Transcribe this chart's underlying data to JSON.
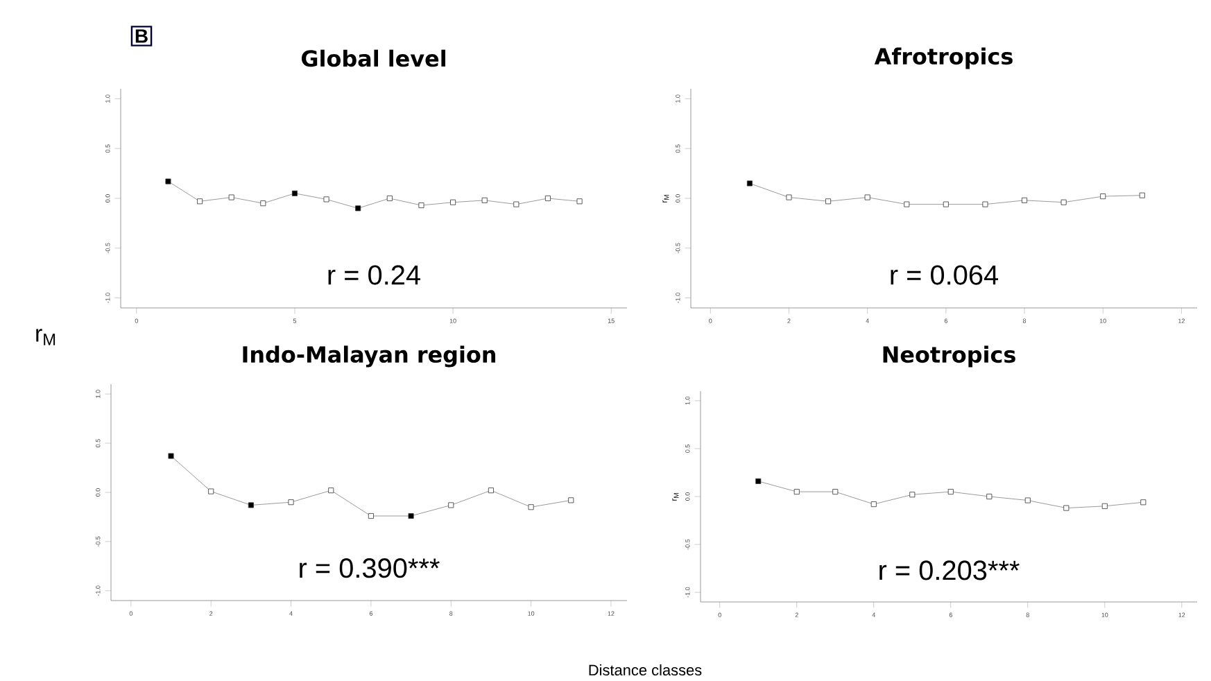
{
  "chart_data": [
    {
      "type": "line",
      "title": "Global level",
      "ylabel": "r$_{M}$",
      "annotations": [
        "B",
        "r = 0.24"
      ],
      "marker": "square",
      "grid": false,
      "xlim": [
        -0.5,
        15.5
      ],
      "ylim": [
        -1.1,
        1.1
      ],
      "xticks": [
        0,
        5,
        10,
        15
      ],
      "yticks": [
        {
          "value": -1,
          "label": "-1.0"
        },
        {
          "value": -0.5,
          "label": "-0.5"
        },
        {
          "value": 0,
          "label": "0.0"
        },
        {
          "value": 0.5,
          "label": "0.5"
        },
        {
          "value": 1,
          "label": "1.0"
        }
      ],
      "series": [
        {
          "color": "#808080",
          "x": [
            1,
            2,
            3,
            4,
            5,
            6,
            7,
            8,
            9,
            10,
            11,
            12,
            13,
            14
          ],
          "values": [
            0.17,
            -0.03,
            0.01,
            -0.05,
            0.05,
            -0.01,
            -0.1,
            0.0,
            -0.07,
            -0.04,
            -0.02,
            -0.06,
            0.0,
            -0.03
          ],
          "colors": [
            "#000000",
            "#ffffff",
            "#ffffff",
            "#ffffff",
            "#000000",
            "#ffffff",
            "#000000",
            "#ffffff",
            "#ffffff",
            "#ffffff",
            "#ffffff",
            "#ffffff",
            "#ffffff",
            "#ffffff"
          ]
        }
      ]
    },
    {
      "type": "line",
      "title": "Afrotropics",
      "ylabel": "r$_{M}$",
      "annotations": [
        "r = 0.064"
      ],
      "marker": "square",
      "grid": false,
      "xlim": [
        -0.5,
        12.4
      ],
      "ylim": [
        -1.1,
        1.1
      ],
      "xticks": [
        0,
        2,
        4,
        6,
        8,
        10,
        12
      ],
      "yticks": [
        {
          "value": -1,
          "label": "-1.0"
        },
        {
          "value": -0.5,
          "label": "-0.5"
        },
        {
          "value": 0,
          "label": "0.0"
        },
        {
          "value": 0.5,
          "label": "0.5"
        },
        {
          "value": 1,
          "label": "1.0"
        }
      ],
      "series": [
        {
          "color": "#808080",
          "x": [
            1,
            2,
            3,
            4,
            5,
            6,
            7,
            8,
            9,
            10,
            11
          ],
          "values": [
            0.15,
            0.01,
            -0.03,
            0.01,
            -0.06,
            -0.06,
            -0.06,
            -0.02,
            -0.04,
            0.02,
            0.03
          ],
          "colors": [
            "#000000",
            "#ffffff",
            "#ffffff",
            "#ffffff",
            "#ffffff",
            "#ffffff",
            "#ffffff",
            "#ffffff",
            "#ffffff",
            "#ffffff",
            "#ffffff"
          ]
        }
      ]
    },
    {
      "type": "line",
      "title": "Indo-Malayan region",
      "xlabel": "Distance classes",
      "annotations": [
        "r = 0.390***"
      ],
      "marker": "square",
      "grid": false,
      "xlim": [
        -0.5,
        12.4
      ],
      "ylim": [
        -1.1,
        1.1
      ],
      "xticks": [
        0,
        2,
        4,
        6,
        8,
        10,
        12
      ],
      "yticks": [
        {
          "value": -1,
          "label": "-1.0"
        },
        {
          "value": -0.5,
          "label": "-0.5"
        },
        {
          "value": 0,
          "label": "0.0"
        },
        {
          "value": 0.5,
          "label": "0.5"
        },
        {
          "value": 1,
          "label": "1.0"
        }
      ],
      "series": [
        {
          "color": "#808080",
          "x": [
            1,
            2,
            3,
            4,
            5,
            6,
            7,
            8,
            9,
            10,
            11
          ],
          "values": [
            0.37,
            0.01,
            -0.13,
            -0.1,
            0.02,
            -0.24,
            -0.24,
            -0.13,
            0.02,
            -0.15,
            -0.08
          ],
          "colors": [
            "#000000",
            "#ffffff",
            "#000000",
            "#ffffff",
            "#ffffff",
            "#ffffff",
            "#000000",
            "#ffffff",
            "#ffffff",
            "#ffffff",
            "#ffffff"
          ]
        }
      ]
    },
    {
      "type": "line",
      "title": "Neotropics",
      "ylabel": "r$_{M}$",
      "annotations": [
        "r = 0.203***"
      ],
      "marker": "square",
      "grid": false,
      "xlim": [
        -0.5,
        12.4
      ],
      "ylim": [
        -1.1,
        1.1
      ],
      "xticks": [
        0,
        2,
        4,
        6,
        8,
        10,
        12
      ],
      "yticks": [
        {
          "value": -1,
          "label": "-1.0"
        },
        {
          "value": -0.5,
          "label": "-0.5"
        },
        {
          "value": 0,
          "label": "0.0"
        },
        {
          "value": 0.5,
          "label": "0.5"
        },
        {
          "value": 1,
          "label": "1.0"
        }
      ],
      "series": [
        {
          "color": "#808080",
          "x": [
            1,
            2,
            3,
            4,
            5,
            6,
            7,
            8,
            9,
            10,
            11
          ],
          "values": [
            0.16,
            0.05,
            0.05,
            -0.08,
            0.02,
            0.05,
            0.0,
            -0.04,
            -0.12,
            -0.1,
            -0.06
          ],
          "colors": [
            "#000000",
            "#ffffff",
            "#ffffff",
            "#ffffff",
            "#ffffff",
            "#ffffff",
            "#ffffff",
            "#ffffff",
            "#ffffff",
            "#ffffff",
            "#ffffff"
          ]
        }
      ]
    }
  ]
}
